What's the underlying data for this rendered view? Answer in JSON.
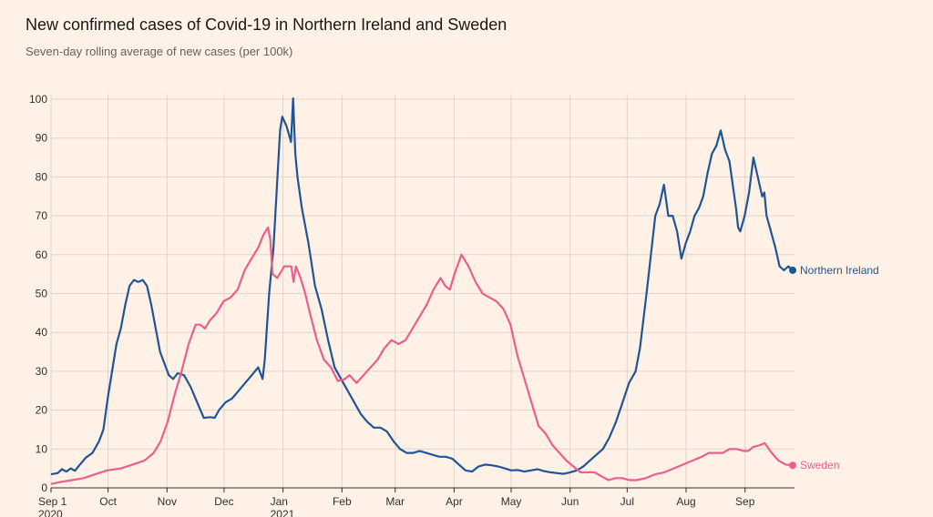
{
  "chart_data": {
    "type": "line",
    "title": "New confirmed cases of Covid-19 in Northern Ireland and Sweden",
    "subtitle": "Seven-day rolling average of new cases (per 100k)",
    "ylim": [
      0,
      100
    ],
    "yticks": [
      0,
      10,
      20,
      30,
      40,
      50,
      60,
      70,
      80,
      90,
      100
    ],
    "xlim": [
      "2020-09-01",
      "2021-09-27"
    ],
    "xticks": [
      {
        "date": "2020-09-01",
        "label": "Sep 1",
        "sub": "2020"
      },
      {
        "date": "2020-10-01",
        "label": "Oct"
      },
      {
        "date": "2020-11-01",
        "label": "Nov"
      },
      {
        "date": "2020-12-01",
        "label": "Dec"
      },
      {
        "date": "2021-01-01",
        "label": "Jan",
        "sub": "2021"
      },
      {
        "date": "2021-02-01",
        "label": "Feb"
      },
      {
        "date": "2021-03-01",
        "label": "Mar"
      },
      {
        "date": "2021-04-01",
        "label": "Apr"
      },
      {
        "date": "2021-05-01",
        "label": "May"
      },
      {
        "date": "2021-06-01",
        "label": "Jun"
      },
      {
        "date": "2021-07-01",
        "label": "Jul"
      },
      {
        "date": "2021-08-01",
        "label": "Aug"
      },
      {
        "date": "2021-09-01",
        "label": "Sep"
      }
    ],
    "grid": true,
    "series": [
      {
        "name": "Northern Ireland",
        "color": "#1f5598",
        "points": [
          [
            "2020-09-01",
            3.5
          ],
          [
            "2020-09-04",
            3.8
          ],
          [
            "2020-09-06",
            4.8
          ],
          [
            "2020-09-08",
            4.2
          ],
          [
            "2020-09-10",
            5
          ],
          [
            "2020-09-12",
            4.4
          ],
          [
            "2020-09-14",
            5.8
          ],
          [
            "2020-09-17",
            7.8
          ],
          [
            "2020-09-20",
            9
          ],
          [
            "2020-09-23",
            12
          ],
          [
            "2020-09-25",
            15
          ],
          [
            "2020-09-27",
            23
          ],
          [
            "2020-09-29",
            30
          ],
          [
            "2020-10-01",
            37
          ],
          [
            "2020-10-03",
            41
          ],
          [
            "2020-10-05",
            47
          ],
          [
            "2020-10-07",
            52
          ],
          [
            "2020-10-09",
            53.5
          ],
          [
            "2020-10-11",
            53
          ],
          [
            "2020-10-13",
            53.5
          ],
          [
            "2020-10-15",
            52
          ],
          [
            "2020-10-17",
            47
          ],
          [
            "2020-10-19",
            41
          ],
          [
            "2020-10-21",
            35
          ],
          [
            "2020-10-23",
            32
          ],
          [
            "2020-10-25",
            29
          ],
          [
            "2020-10-27",
            28
          ],
          [
            "2020-10-29",
            29.5
          ],
          [
            "2020-11-01",
            29
          ],
          [
            "2020-11-04",
            26
          ],
          [
            "2020-11-07",
            22
          ],
          [
            "2020-11-10",
            18
          ],
          [
            "2020-11-13",
            18.2
          ],
          [
            "2020-11-15",
            18
          ],
          [
            "2020-11-17",
            20
          ],
          [
            "2020-11-20",
            22
          ],
          [
            "2020-11-23",
            23
          ],
          [
            "2020-11-26",
            25
          ],
          [
            "2020-11-29",
            27
          ],
          [
            "2020-12-02",
            29
          ],
          [
            "2020-12-05",
            31
          ],
          [
            "2020-12-07",
            28
          ],
          [
            "2020-12-08",
            33
          ],
          [
            "2020-12-10",
            50
          ],
          [
            "2020-12-12",
            62
          ],
          [
            "2020-12-14",
            82
          ],
          [
            "2020-12-15",
            92
          ],
          [
            "2020-12-16",
            95.5
          ],
          [
            "2020-12-18",
            93
          ],
          [
            "2020-12-20",
            89
          ],
          [
            "2020-12-21",
            100.2
          ],
          [
            "2020-12-22",
            86
          ],
          [
            "2020-12-23",
            80
          ],
          [
            "2020-12-25",
            72
          ],
          [
            "2020-12-28",
            63
          ],
          [
            "2020-12-31",
            52
          ],
          [
            "2021-01-03",
            46
          ],
          [
            "2021-01-06",
            38
          ],
          [
            "2021-01-09",
            31
          ],
          [
            "2021-01-12",
            28
          ],
          [
            "2021-01-15",
            25
          ],
          [
            "2021-01-18",
            22
          ],
          [
            "2021-01-21",
            19
          ],
          [
            "2021-01-24",
            17
          ],
          [
            "2021-01-27",
            15.5
          ],
          [
            "2021-01-30",
            15.5
          ],
          [
            "2021-02-02",
            14.5
          ],
          [
            "2021-02-05",
            12
          ],
          [
            "2021-02-08",
            10
          ],
          [
            "2021-02-11",
            9
          ],
          [
            "2021-02-14",
            9
          ],
          [
            "2021-02-17",
            9.5
          ],
          [
            "2021-02-20",
            9
          ],
          [
            "2021-02-23",
            8.5
          ],
          [
            "2021-02-26",
            8
          ],
          [
            "2021-03-01",
            8
          ],
          [
            "2021-03-04",
            7.5
          ],
          [
            "2021-03-07",
            6
          ],
          [
            "2021-03-10",
            4.5
          ],
          [
            "2021-03-13",
            4.2
          ],
          [
            "2021-03-16",
            5.5
          ],
          [
            "2021-03-19",
            6
          ],
          [
            "2021-03-22",
            5.8
          ],
          [
            "2021-03-25",
            5.5
          ],
          [
            "2021-03-28",
            5
          ],
          [
            "2021-03-31",
            4.5
          ],
          [
            "2021-04-03",
            4.6
          ],
          [
            "2021-04-06",
            4.2
          ],
          [
            "2021-04-09",
            4.5
          ],
          [
            "2021-04-12",
            4.8
          ],
          [
            "2021-04-15",
            4.3
          ],
          [
            "2021-04-18",
            4
          ],
          [
            "2021-04-21",
            3.8
          ],
          [
            "2021-04-24",
            3.6
          ],
          [
            "2021-04-27",
            4
          ],
          [
            "2021-04-30",
            4.5
          ],
          [
            "2021-05-03",
            5.5
          ],
          [
            "2021-05-06",
            7
          ],
          [
            "2021-05-09",
            8.5
          ],
          [
            "2021-05-12",
            10
          ],
          [
            "2021-05-15",
            13
          ],
          [
            "2021-05-18",
            17
          ],
          [
            "2021-05-21",
            22
          ],
          [
            "2021-05-24",
            27
          ],
          [
            "2021-05-27",
            30
          ],
          [
            "2021-05-29",
            36
          ],
          [
            "2021-06-01",
            50
          ],
          [
            "2021-06-03",
            60
          ],
          [
            "2021-06-05",
            70
          ],
          [
            "2021-06-07",
            73
          ],
          [
            "2021-06-09",
            78
          ],
          [
            "2021-06-11",
            70
          ],
          [
            "2021-06-13",
            70
          ],
          [
            "2021-06-15",
            66
          ],
          [
            "2021-06-17",
            59
          ],
          [
            "2021-06-19",
            63
          ],
          [
            "2021-06-21",
            66
          ],
          [
            "2021-06-23",
            70
          ],
          [
            "2021-06-25",
            72
          ],
          [
            "2021-06-27",
            75
          ],
          [
            "2021-06-29",
            81
          ],
          [
            "2021-07-01",
            86
          ],
          [
            "2021-07-03",
            88
          ],
          [
            "2021-07-05",
            92
          ],
          [
            "2021-07-07",
            87
          ],
          [
            "2021-07-09",
            84
          ],
          [
            "2021-07-11",
            76
          ],
          [
            "2021-07-12",
            72
          ],
          [
            "2021-07-13",
            67
          ],
          [
            "2021-07-14",
            66
          ],
          [
            "2021-07-16",
            70
          ],
          [
            "2021-07-18",
            76
          ],
          [
            "2021-07-20",
            85
          ],
          [
            "2021-07-22",
            80
          ],
          [
            "2021-07-24",
            75
          ],
          [
            "2021-07-25",
            76
          ],
          [
            "2021-07-26",
            70
          ],
          [
            "2021-07-28",
            66
          ],
          [
            "2021-07-30",
            62
          ],
          [
            "2021-08-01",
            57
          ],
          [
            "2021-08-03",
            56
          ],
          [
            "2021-08-05",
            57
          ],
          [
            "2021-08-07",
            56
          ]
        ]
      },
      {
        "name": "Sweden",
        "color": "#eb5e8d",
        "points": [
          [
            "2020-09-01",
            1
          ],
          [
            "2020-09-05",
            1.5
          ],
          [
            "2020-09-10",
            2
          ],
          [
            "2020-09-15",
            2.5
          ],
          [
            "2020-09-20",
            3.5
          ],
          [
            "2020-09-25",
            4.5
          ],
          [
            "2020-10-01",
            5
          ],
          [
            "2020-10-06",
            6
          ],
          [
            "2020-10-11",
            7
          ],
          [
            "2020-10-15",
            9
          ],
          [
            "2020-10-18",
            12
          ],
          [
            "2020-10-21",
            17
          ],
          [
            "2020-10-24",
            24
          ],
          [
            "2020-10-27",
            30
          ],
          [
            "2020-10-30",
            37
          ],
          [
            "2020-11-02",
            42
          ],
          [
            "2020-11-04",
            42
          ],
          [
            "2020-11-06",
            41
          ],
          [
            "2020-11-08",
            43
          ],
          [
            "2020-11-11",
            45
          ],
          [
            "2020-11-14",
            48
          ],
          [
            "2020-11-17",
            49
          ],
          [
            "2020-11-20",
            51
          ],
          [
            "2020-11-23",
            56
          ],
          [
            "2020-11-26",
            59
          ],
          [
            "2020-11-29",
            62
          ],
          [
            "2020-12-01",
            65
          ],
          [
            "2020-12-03",
            67
          ],
          [
            "2020-12-04",
            64
          ],
          [
            "2020-12-05",
            55
          ],
          [
            "2020-12-07",
            54
          ],
          [
            "2020-12-10",
            57
          ],
          [
            "2020-12-13",
            57
          ],
          [
            "2020-12-14",
            53
          ],
          [
            "2020-12-15",
            57
          ],
          [
            "2020-12-17",
            54
          ],
          [
            "2020-12-19",
            50
          ],
          [
            "2020-12-21",
            45
          ],
          [
            "2020-12-24",
            38
          ],
          [
            "2020-12-27",
            33
          ],
          [
            "2020-12-30",
            31
          ],
          [
            "2021-01-02",
            27.5
          ],
          [
            "2021-01-05",
            28
          ],
          [
            "2021-01-07",
            29
          ],
          [
            "2021-01-10",
            27
          ],
          [
            "2021-01-13",
            29
          ],
          [
            "2021-01-16",
            31
          ],
          [
            "2021-01-19",
            33
          ],
          [
            "2021-01-22",
            36
          ],
          [
            "2021-01-25",
            38
          ],
          [
            "2021-01-28",
            37
          ],
          [
            "2021-01-31",
            38
          ],
          [
            "2021-02-03",
            41
          ],
          [
            "2021-02-06",
            44
          ],
          [
            "2021-02-09",
            47
          ],
          [
            "2021-02-12",
            51
          ],
          [
            "2021-02-15",
            54
          ],
          [
            "2021-02-17",
            52
          ],
          [
            "2021-02-19",
            51
          ],
          [
            "2021-02-21",
            55
          ],
          [
            "2021-02-24",
            60
          ],
          [
            "2021-02-27",
            57
          ],
          [
            "2021-03-02",
            53
          ],
          [
            "2021-03-05",
            50
          ],
          [
            "2021-03-08",
            49
          ],
          [
            "2021-03-11",
            48
          ],
          [
            "2021-03-14",
            46
          ],
          [
            "2021-03-17",
            42
          ],
          [
            "2021-03-20",
            34
          ],
          [
            "2021-03-23",
            28
          ],
          [
            "2021-03-26",
            22
          ],
          [
            "2021-03-29",
            16
          ],
          [
            "2021-04-01",
            14
          ],
          [
            "2021-04-04",
            11
          ],
          [
            "2021-04-07",
            9
          ],
          [
            "2021-04-10",
            7
          ],
          [
            "2021-04-13",
            5.5
          ],
          [
            "2021-04-16",
            4
          ],
          [
            "2021-04-19",
            4
          ],
          [
            "2021-04-22",
            4
          ],
          [
            "2021-04-25",
            3
          ],
          [
            "2021-04-28",
            2
          ],
          [
            "2021-05-01",
            2.5
          ],
          [
            "2021-05-04",
            2.5
          ],
          [
            "2021-05-07",
            2
          ],
          [
            "2021-05-10",
            2
          ],
          [
            "2021-05-14",
            2.5
          ],
          [
            "2021-05-18",
            3.5
          ],
          [
            "2021-05-22",
            4
          ],
          [
            "2021-05-26",
            5
          ],
          [
            "2021-05-30",
            6
          ],
          [
            "2021-06-03",
            7
          ],
          [
            "2021-06-07",
            8
          ],
          [
            "2021-06-10",
            9
          ],
          [
            "2021-06-13",
            9
          ],
          [
            "2021-06-16",
            9
          ],
          [
            "2021-06-19",
            10
          ],
          [
            "2021-06-22",
            10
          ],
          [
            "2021-06-25",
            9.5
          ],
          [
            "2021-06-27",
            9.5
          ],
          [
            "2021-06-29",
            10.5
          ],
          [
            "2021-07-02",
            11
          ],
          [
            "2021-07-04",
            11.5
          ],
          [
            "2021-07-07",
            9
          ],
          [
            "2021-07-10",
            7
          ],
          [
            "2021-07-13",
            6
          ],
          [
            "2021-07-16",
            5.8
          ]
        ]
      }
    ]
  }
}
